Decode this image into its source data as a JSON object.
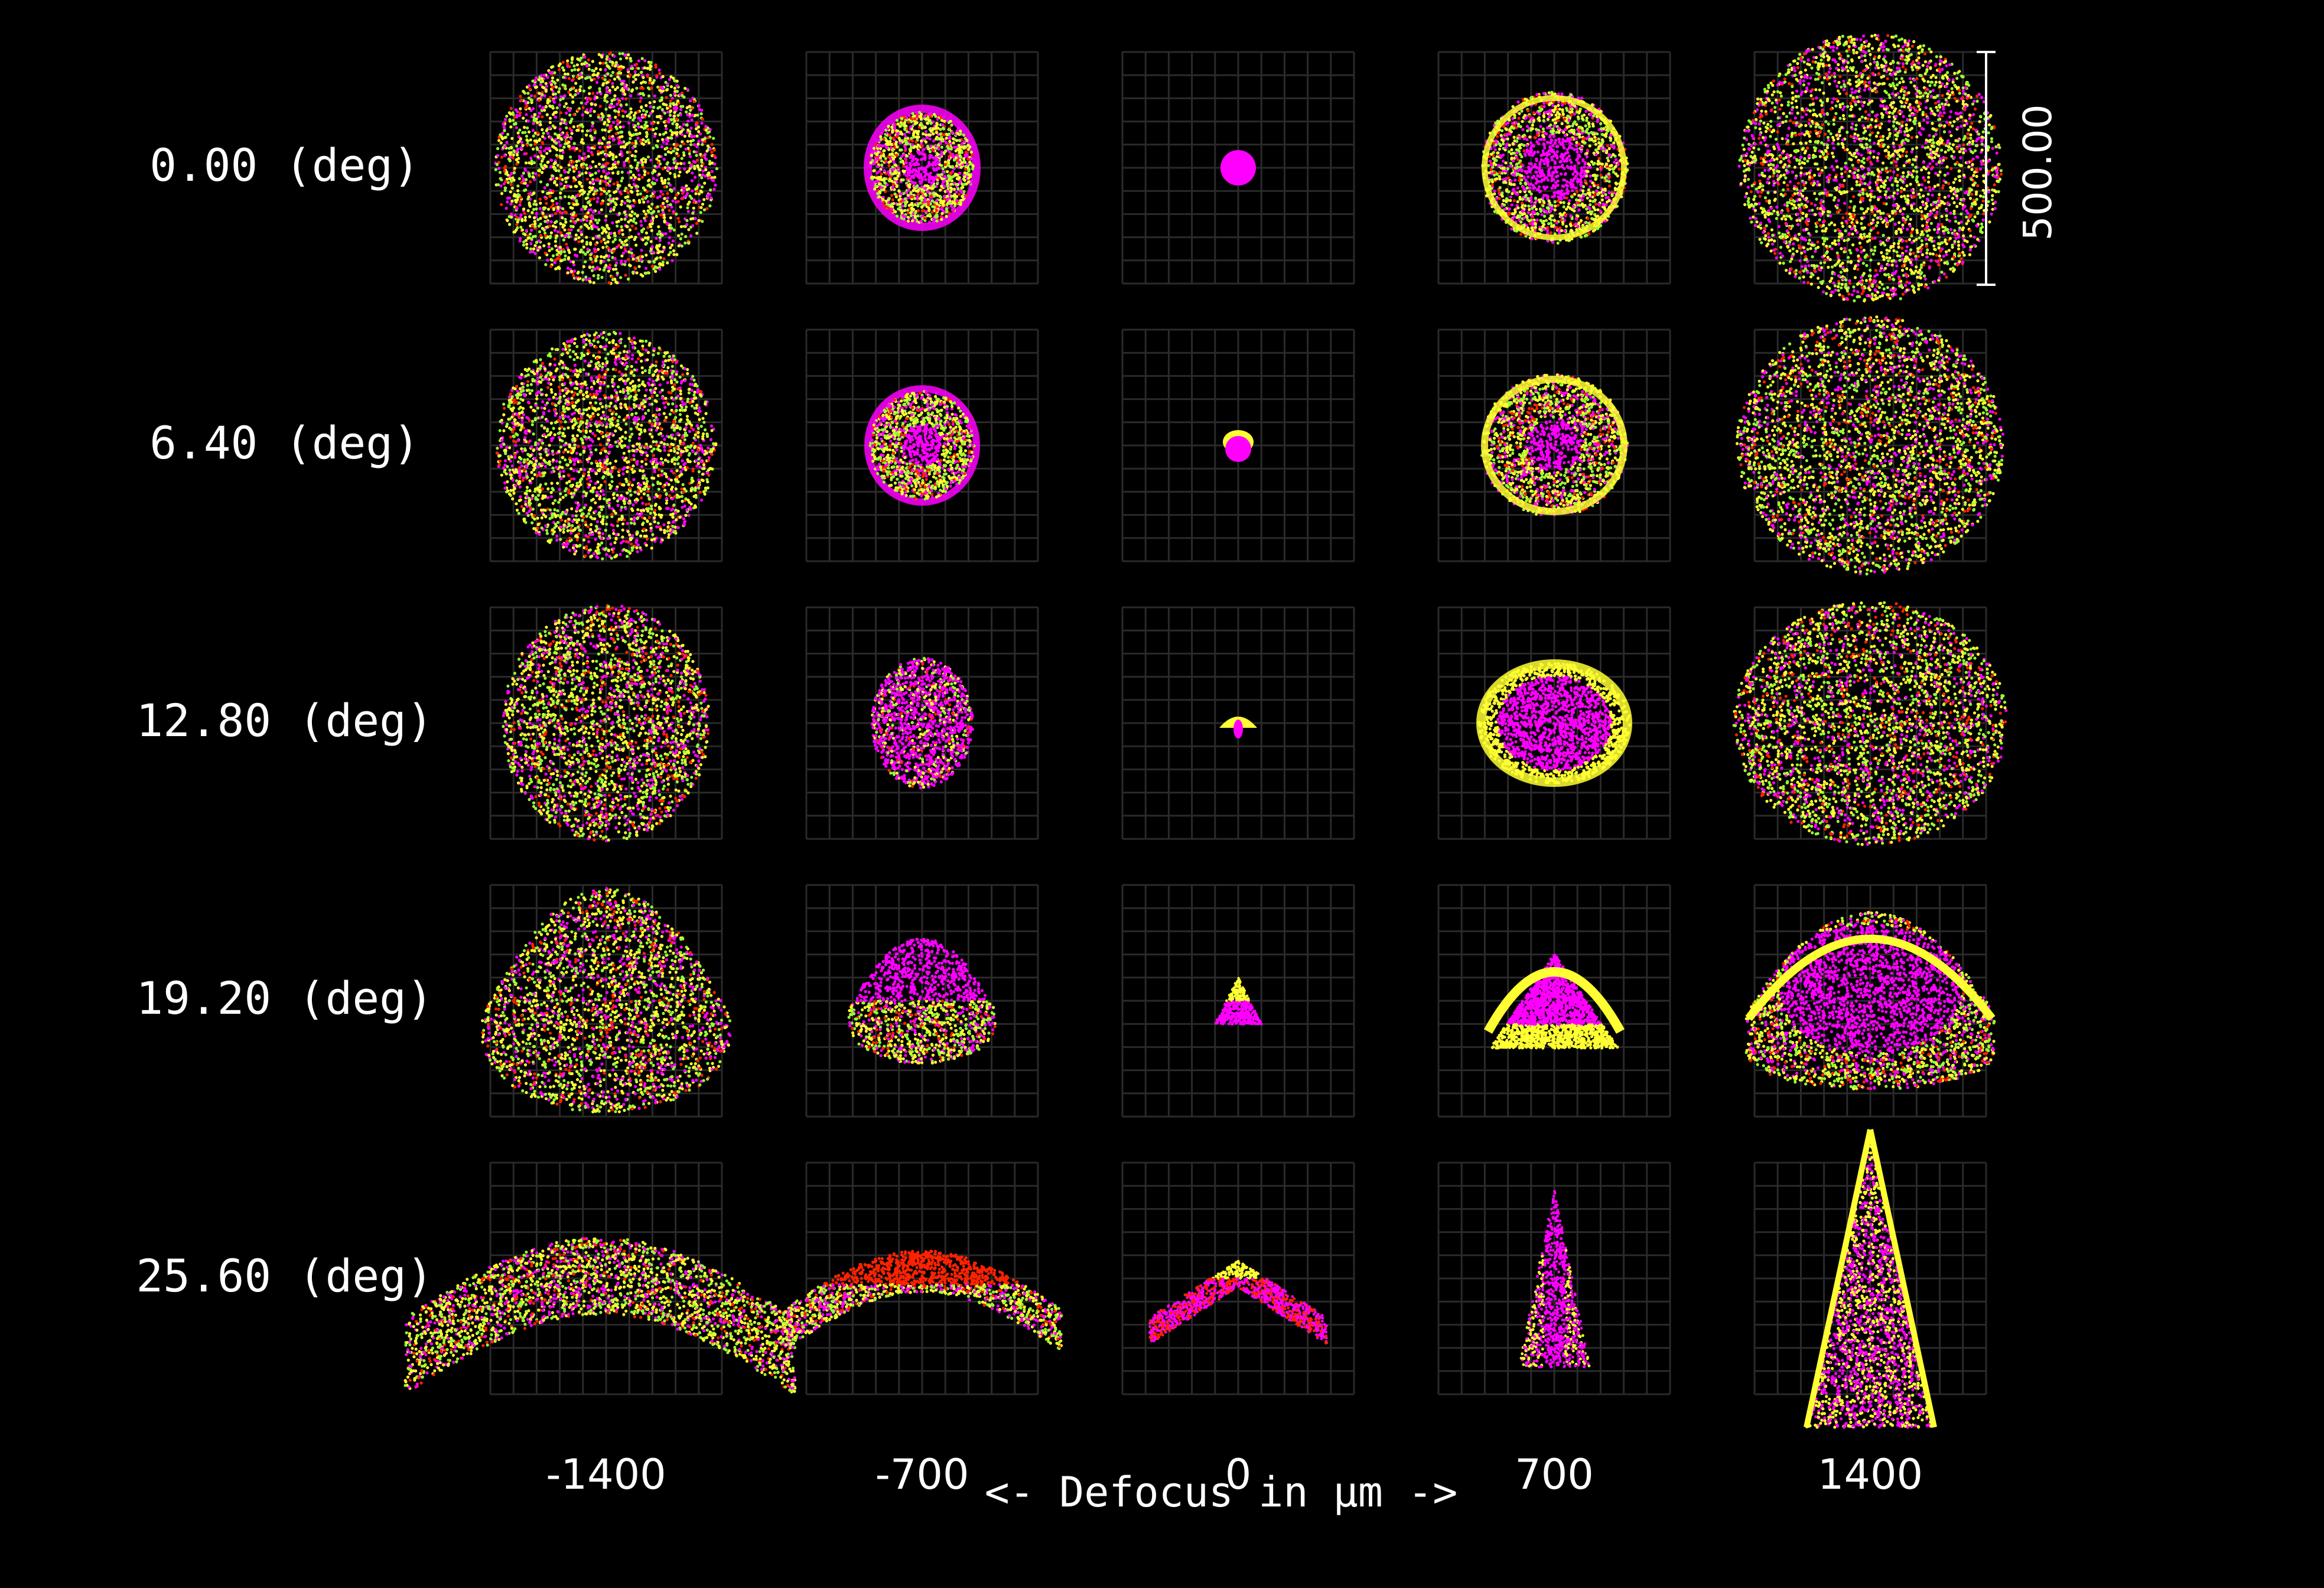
{
  "diagram": {
    "rows": [
      {
        "field_deg": 0.0,
        "label": "0.00 (deg)"
      },
      {
        "field_deg": 6.4,
        "label": "6.40 (deg)"
      },
      {
        "field_deg": 12.8,
        "label": "12.80 (deg)"
      },
      {
        "field_deg": 19.2,
        "label": "19.20 (deg)"
      },
      {
        "field_deg": 25.6,
        "label": "25.60 (deg)"
      }
    ],
    "columns": [
      {
        "defocus_um": -1400,
        "label": "-1400"
      },
      {
        "defocus_um": -700,
        "label": "-700"
      },
      {
        "defocus_um": 0,
        "label": "0"
      },
      {
        "defocus_um": 700,
        "label": "700"
      },
      {
        "defocus_um": 1400,
        "label": "1400"
      }
    ],
    "x_axis_title": "<- Defocus in µm ->",
    "scale_bar_label": "500.00",
    "colors": {
      "background": "#000000",
      "grid": "#2a2a2a",
      "text": "#ffffff",
      "rays": [
        "#ff00ff",
        "#ffff33",
        "#99ff33",
        "#ff2200",
        "#3344ff"
      ]
    }
  }
}
